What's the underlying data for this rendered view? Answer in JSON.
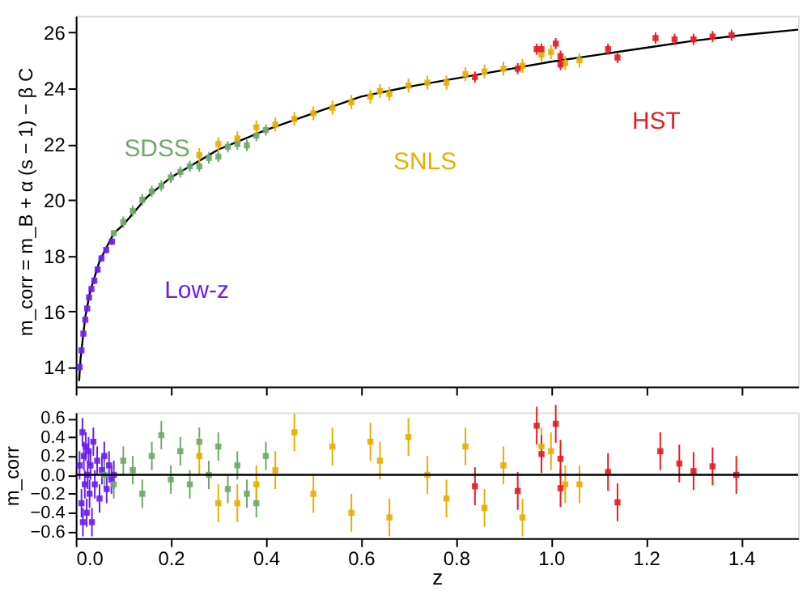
{
  "chart_data": [
    {
      "type": "scatter",
      "ylabel": "m_corr = m_B + α (s − 1) − β C",
      "xlim": [
        0,
        1.52
      ],
      "ylim": [
        13.3,
        26.6
      ],
      "xticks": [
        0,
        0.2,
        0.4,
        0.6,
        0.8,
        1.0,
        1.2,
        1.4
      ],
      "yticks": [
        14,
        16,
        18,
        20,
        22,
        24,
        26
      ],
      "tick_labels": "y",
      "grid": false,
      "marker": "square",
      "series": [
        {
          "name": "Low-z",
          "color": "#6a1ff0",
          "x": [
            0.008,
            0.012,
            0.016,
            0.02,
            0.024,
            0.028,
            0.033,
            0.039,
            0.046,
            0.054,
            0.064,
            0.076
          ],
          "values": [
            14.0,
            14.6,
            15.2,
            15.7,
            16.1,
            16.5,
            16.8,
            17.1,
            17.5,
            17.9,
            18.2,
            18.5
          ],
          "errors": [
            0.12,
            0.12,
            0.12,
            0.12,
            0.12,
            0.12,
            0.12,
            0.12,
            0.12,
            0.12,
            0.12,
            0.12
          ]
        },
        {
          "name": "SDSS",
          "color": "#6fa86b",
          "x": [
            0.08,
            0.1,
            0.12,
            0.14,
            0.16,
            0.18,
            0.2,
            0.22,
            0.24,
            0.26,
            0.28,
            0.3,
            0.32,
            0.34,
            0.36,
            0.38,
            0.4
          ],
          "values": [
            18.8,
            19.2,
            19.6,
            20.0,
            20.3,
            20.5,
            20.8,
            21.0,
            21.2,
            21.2,
            21.5,
            21.55,
            21.9,
            22.0,
            21.95,
            22.3,
            22.5
          ],
          "errors": [
            0.12,
            0.2,
            0.2,
            0.2,
            0.2,
            0.2,
            0.2,
            0.2,
            0.2,
            0.2,
            0.2,
            0.2,
            0.2,
            0.2,
            0.2,
            0.2,
            0.2
          ]
        },
        {
          "name": "SNLS",
          "color": "#e8ae00",
          "x": [
            0.26,
            0.3,
            0.34,
            0.38,
            0.42,
            0.46,
            0.5,
            0.54,
            0.58,
            0.62,
            0.64,
            0.66,
            0.7,
            0.74,
            0.78,
            0.82,
            0.86,
            0.9,
            0.94,
            0.98,
            1.0,
            1.03,
            1.06
          ],
          "values": [
            21.6,
            22.0,
            22.2,
            22.6,
            22.7,
            22.9,
            23.1,
            23.3,
            23.5,
            23.7,
            23.9,
            23.8,
            24.1,
            24.2,
            24.2,
            24.5,
            24.6,
            24.7,
            24.8,
            25.2,
            25.3,
            24.9,
            25.0
          ],
          "errors": [
            0.25,
            0.25,
            0.25,
            0.25,
            0.25,
            0.25,
            0.25,
            0.25,
            0.25,
            0.25,
            0.25,
            0.25,
            0.25,
            0.25,
            0.25,
            0.25,
            0.25,
            0.25,
            0.25,
            0.25,
            0.25,
            0.25,
            0.25
          ]
        },
        {
          "name": "HST",
          "color": "#e81c24",
          "x": [
            0.84,
            0.93,
            0.97,
            0.98,
            1.01,
            1.02,
            1.02,
            1.12,
            1.14,
            1.22,
            1.26,
            1.3,
            1.34,
            1.38
          ],
          "values": [
            24.4,
            24.7,
            25.4,
            25.4,
            25.6,
            25.15,
            24.85,
            25.4,
            25.1,
            25.8,
            25.75,
            25.75,
            25.85,
            25.9
          ],
          "errors": [
            0.2,
            0.2,
            0.2,
            0.2,
            0.2,
            0.2,
            0.2,
            0.2,
            0.2,
            0.2,
            0.2,
            0.2,
            0.2,
            0.2
          ]
        },
        {
          "type": "line",
          "color": "#000000",
          "marker": "none",
          "x": [
            0.007,
            0.01,
            0.02,
            0.03,
            0.05,
            0.08,
            0.1,
            0.15,
            0.2,
            0.3,
            0.4,
            0.5,
            0.6,
            0.7,
            0.8,
            0.9,
            1.0,
            1.1,
            1.2,
            1.3,
            1.4,
            1.52
          ],
          "values": [
            13.5,
            14.3,
            15.8,
            16.7,
            17.8,
            18.8,
            19.1,
            20.1,
            20.8,
            21.8,
            22.5,
            23.1,
            23.7,
            24.05,
            24.35,
            24.65,
            24.95,
            25.2,
            25.45,
            25.7,
            25.9,
            26.1
          ]
        }
      ]
    },
    {
      "type": "scatter",
      "xlabel": "z",
      "ylabel": "m_corr",
      "xlim": [
        0,
        1.52
      ],
      "ylim": [
        -0.67,
        0.66
      ],
      "xticks": [
        {
          "value": 0,
          "label": "0.0"
        },
        0.2,
        0.4,
        0.6,
        0.8,
        {
          "value": 1.0,
          "label": "1.0"
        },
        1.2,
        1.4
      ],
      "yticks": [
        {
          "value": -0.6,
          "label": "−0.6"
        },
        {
          "value": -0.4,
          "label": "−0.4"
        },
        {
          "value": -0.2,
          "label": "−0.2"
        },
        {
          "value": 0,
          "label": "0.0"
        },
        0.2,
        0.4,
        0.6
      ],
      "grid": false,
      "marker": "square",
      "ref_lines": [
        {
          "axis": "y",
          "value": 0,
          "color": "#000000"
        }
      ],
      "series": [
        {
          "color": "#6a1ff0",
          "x": [
            0.008,
            0.012,
            0.014,
            0.015,
            0.017,
            0.019,
            0.021,
            0.023,
            0.025,
            0.027,
            0.029,
            0.031,
            0.034,
            0.037,
            0.04,
            0.045,
            0.05,
            0.055,
            0.06,
            0.065,
            0.07,
            0.075,
            0.08
          ],
          "values": [
            0.1,
            -0.3,
            0.45,
            -0.5,
            0.2,
            -0.1,
            0.3,
            -0.4,
            0.0,
            0.25,
            -0.2,
            0.1,
            -0.5,
            0.35,
            -0.1,
            0.15,
            -0.25,
            0.05,
            0.2,
            -0.15,
            0.1,
            -0.05,
            0.0
          ],
          "errors": [
            0.15,
            0.15,
            0.15,
            0.15,
            0.15,
            0.15,
            0.15,
            0.15,
            0.15,
            0.15,
            0.15,
            0.15,
            0.15,
            0.15,
            0.15,
            0.15,
            0.15,
            0.15,
            0.15,
            0.15,
            0.15,
            0.15,
            0.15
          ]
        },
        {
          "color": "#6fa86b",
          "x": [
            0.06,
            0.08,
            0.1,
            0.12,
            0.14,
            0.16,
            0.18,
            0.2,
            0.22,
            0.24,
            0.26,
            0.28,
            0.3,
            0.32,
            0.34,
            0.36,
            0.38,
            0.4
          ],
          "values": [
            0.0,
            -0.1,
            0.15,
            0.05,
            -0.2,
            0.2,
            0.42,
            -0.05,
            0.25,
            -0.1,
            0.35,
            0.0,
            0.3,
            -0.15,
            0.1,
            -0.2,
            -0.3,
            0.2
          ],
          "errors": [
            0.15,
            0.15,
            0.15,
            0.15,
            0.15,
            0.15,
            0.15,
            0.15,
            0.15,
            0.15,
            0.15,
            0.15,
            0.15,
            0.15,
            0.15,
            0.15,
            0.15,
            0.15
          ]
        },
        {
          "color": "#e8ae00",
          "x": [
            0.26,
            0.3,
            0.34,
            0.38,
            0.42,
            0.46,
            0.5,
            0.54,
            0.58,
            0.62,
            0.64,
            0.66,
            0.7,
            0.74,
            0.78,
            0.82,
            0.86,
            0.9,
            0.94,
            0.98,
            1.0,
            1.03,
            1.06
          ],
          "values": [
            0.2,
            -0.3,
            -0.3,
            -0.1,
            0.05,
            0.45,
            -0.2,
            0.3,
            -0.4,
            0.35,
            0.15,
            -0.45,
            0.4,
            0.0,
            -0.25,
            0.3,
            -0.35,
            0.1,
            -0.45,
            0.3,
            0.25,
            -0.1,
            -0.1
          ],
          "errors": [
            0.2,
            0.2,
            0.2,
            0.2,
            0.2,
            0.2,
            0.2,
            0.2,
            0.2,
            0.2,
            0.2,
            0.2,
            0.2,
            0.2,
            0.2,
            0.2,
            0.2,
            0.2,
            0.2,
            0.2,
            0.2,
            0.2,
            0.2
          ]
        },
        {
          "color": "#e81c24",
          "x": [
            0.84,
            0.93,
            0.97,
            0.98,
            1.01,
            1.02,
            1.02,
            1.12,
            1.14,
            1.23,
            1.27,
            1.3,
            1.34,
            1.39
          ],
          "values": [
            -0.12,
            -0.17,
            0.52,
            0.22,
            0.54,
            0.17,
            -0.14,
            0.03,
            -0.29,
            0.25,
            0.12,
            0.04,
            0.09,
            0.0
          ],
          "errors": [
            0.2,
            0.2,
            0.2,
            0.2,
            0.2,
            0.2,
            0.2,
            0.2,
            0.2,
            0.2,
            0.2,
            0.2,
            0.2,
            0.2
          ]
        }
      ]
    }
  ]
}
